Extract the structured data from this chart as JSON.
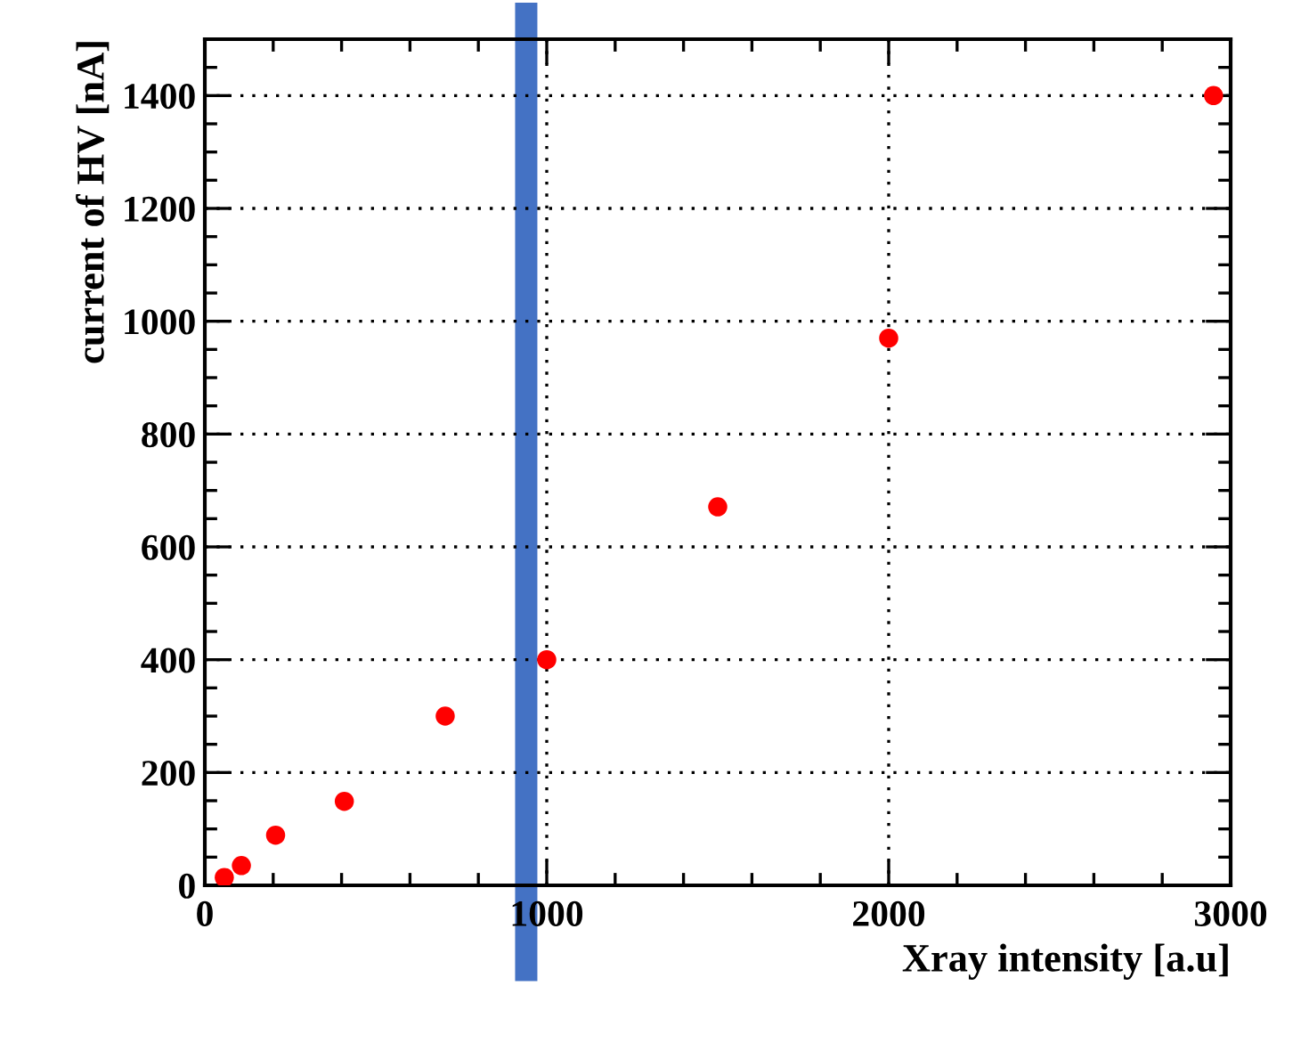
{
  "chart_data": {
    "type": "scatter",
    "xlabel": "Xray intensity [a.u]",
    "ylabel": "current of HV [nA]",
    "x": [
      57,
      107,
      207,
      408,
      703,
      1000,
      1500,
      2000,
      2950
    ],
    "series": [
      {
        "color": "#ff0000",
        "values": [
          14,
          35,
          89,
          149,
          300,
          400,
          671,
          970,
          1400
        ]
      }
    ],
    "marker": "circle",
    "grid": true,
    "xlim": [
      0,
      3000
    ],
    "ylim": [
      0,
      1500
    ],
    "xticks": [
      0,
      {
        "value": 200,
        "label": null
      },
      {
        "value": 400,
        "label": null
      },
      {
        "value": 600,
        "label": null
      },
      {
        "value": 800,
        "label": null
      },
      1000,
      {
        "value": 1200,
        "label": null
      },
      {
        "value": 1400,
        "label": null
      },
      {
        "value": 1600,
        "label": null
      },
      {
        "value": 1800,
        "label": null
      },
      2000,
      {
        "value": 2200,
        "label": null
      },
      {
        "value": 2400,
        "label": null
      },
      {
        "value": 2600,
        "label": null
      },
      {
        "value": 2800,
        "label": null
      },
      3000
    ],
    "yticks": [
      0,
      {
        "value": 50,
        "label": null
      },
      {
        "value": 100,
        "label": null
      },
      {
        "value": 150,
        "label": null
      },
      200,
      {
        "value": 250,
        "label": null
      },
      {
        "value": 300,
        "label": null
      },
      {
        "value": 350,
        "label": null
      },
      400,
      {
        "value": 450,
        "label": null
      },
      {
        "value": 500,
        "label": null
      },
      {
        "value": 550,
        "label": null
      },
      600,
      {
        "value": 650,
        "label": null
      },
      {
        "value": 700,
        "label": null
      },
      {
        "value": 750,
        "label": null
      },
      800,
      {
        "value": 850,
        "label": null
      },
      {
        "value": 900,
        "label": null
      },
      {
        "value": 950,
        "label": null
      },
      1000,
      {
        "value": 1050,
        "label": null
      },
      {
        "value": 1100,
        "label": null
      },
      {
        "value": 1150,
        "label": null
      },
      1200,
      {
        "value": 1250,
        "label": null
      },
      {
        "value": 1300,
        "label": null
      },
      {
        "value": 1350,
        "label": null
      },
      1400,
      {
        "value": 1450,
        "label": null
      },
      {
        "value": 1500,
        "label": null
      }
    ],
    "ref_lines": [
      {
        "axis": "x",
        "value": 940,
        "color": "#4472c4",
        "line_style": "solid"
      }
    ]
  }
}
